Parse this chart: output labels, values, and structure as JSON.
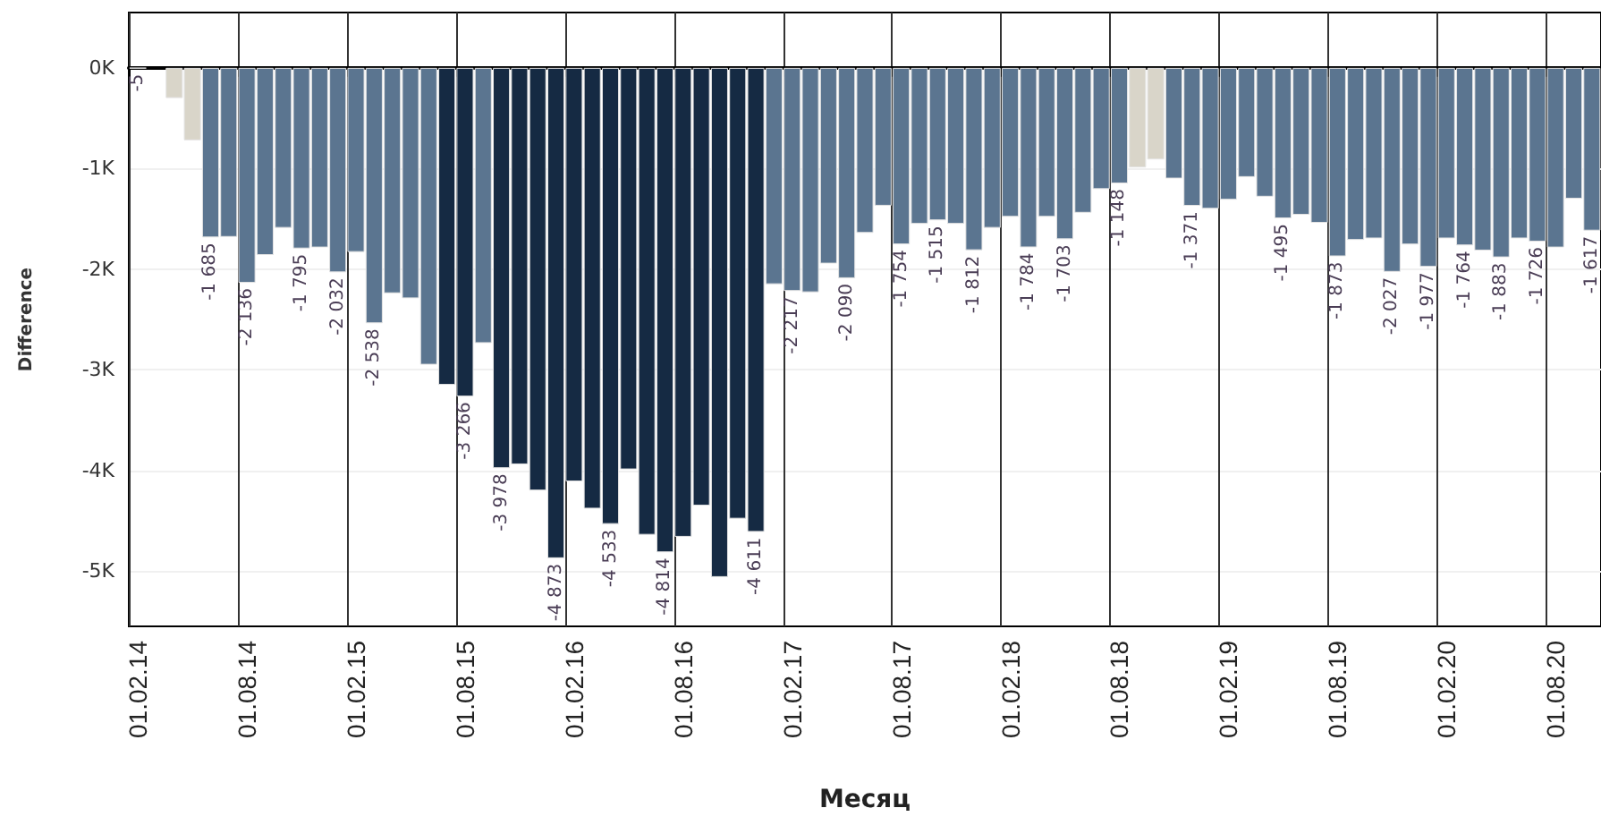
{
  "chart_data": {
    "type": "bar",
    "xlabel": "Месяц",
    "ylabel": "Difference",
    "categories": [
      "01.02.14",
      null,
      null,
      null,
      null,
      null,
      "01.08.14",
      null,
      null,
      null,
      null,
      null,
      "01.02.15",
      null,
      null,
      null,
      null,
      null,
      "01.08.15",
      null,
      null,
      null,
      null,
      null,
      "01.02.16",
      null,
      null,
      null,
      null,
      null,
      "01.08.16",
      null,
      null,
      null,
      null,
      null,
      "01.02.17",
      null,
      null,
      null,
      null,
      null,
      "01.08.17",
      null,
      null,
      null,
      null,
      null,
      "01.02.18",
      null,
      null,
      null,
      null,
      null,
      "01.08.18",
      null,
      null,
      null,
      null,
      null,
      "01.02.19",
      null,
      null,
      null,
      null,
      null,
      "01.08.19",
      null,
      null,
      null,
      null,
      null,
      "01.02.20",
      null,
      null,
      null,
      null,
      null,
      "01.08.20",
      null,
      null
    ],
    "values": [
      -5,
      null,
      -300,
      -720,
      -1685,
      -1680,
      -2136,
      -1860,
      -1590,
      -1795,
      -1785,
      -2032,
      -1830,
      -2538,
      -2240,
      -2290,
      -2950,
      -3150,
      -3266,
      -2735,
      -3978,
      -3940,
      -4200,
      -4873,
      -4110,
      -4380,
      -4533,
      -3990,
      -4640,
      -4814,
      -4660,
      -4350,
      -5060,
      -4480,
      -4611,
      -2150,
      -2217,
      -2230,
      -1945,
      -2090,
      -1640,
      -1370,
      -1754,
      -1550,
      -1515,
      -1550,
      -1812,
      -1590,
      -1480,
      -1784,
      -1480,
      -1703,
      -1440,
      -1205,
      -1148,
      -990,
      -910,
      -1100,
      -1371,
      -1400,
      -1310,
      -1085,
      -1280,
      -1495,
      -1460,
      -1540,
      -1873,
      -1710,
      -1695,
      -2027,
      -1755,
      -1977,
      -1695,
      -1764,
      -1815,
      -1883,
      -1695,
      -1726,
      -1785,
      -1300,
      -1617
    ],
    "value_labels": [
      "-5",
      null,
      null,
      null,
      "-1 685",
      null,
      "-2 136",
      null,
      null,
      "-1 795",
      null,
      "-2 032",
      null,
      "-2 538",
      null,
      null,
      null,
      null,
      "-3 266",
      null,
      "-3 978",
      null,
      null,
      "-4 873",
      null,
      null,
      "-4 533",
      null,
      null,
      "-4 814",
      null,
      null,
      null,
      null,
      "-4 611",
      null,
      "-2 217",
      null,
      null,
      "-2 090",
      null,
      null,
      "-1 754",
      null,
      "-1 515",
      null,
      "-1 812",
      null,
      null,
      "-1 784",
      null,
      "-1 703",
      null,
      null,
      "-1 148",
      null,
      null,
      null,
      "-1 371",
      null,
      null,
      null,
      null,
      "-1 495",
      null,
      null,
      "-1 873",
      null,
      null,
      "-2 027",
      null,
      "-1 977",
      null,
      "-1 764",
      null,
      "-1 883",
      null,
      "-1 726",
      null,
      null,
      "-1 617"
    ],
    "colors": [
      "#d9d5c9",
      "#d9d5c9",
      "#d9d5c9",
      "#d9d5c9",
      "#5b7590",
      "#5b7590",
      "#5b7590",
      "#5b7590",
      "#5b7590",
      "#5b7590",
      "#5b7590",
      "#5b7590",
      "#5b7590",
      "#5b7590",
      "#5b7590",
      "#5b7590",
      "#5b7590",
      "#152a43",
      "#152a43",
      "#5b7590",
      "#152a43",
      "#152a43",
      "#152a43",
      "#152a43",
      "#152a43",
      "#152a43",
      "#152a43",
      "#152a43",
      "#152a43",
      "#152a43",
      "#152a43",
      "#152a43",
      "#152a43",
      "#152a43",
      "#152a43",
      "#5b7590",
      "#5b7590",
      "#5b7590",
      "#5b7590",
      "#5b7590",
      "#5b7590",
      "#5b7590",
      "#5b7590",
      "#5b7590",
      "#5b7590",
      "#5b7590",
      "#5b7590",
      "#5b7590",
      "#5b7590",
      "#5b7590",
      "#5b7590",
      "#5b7590",
      "#5b7590",
      "#5b7590",
      "#5b7590",
      "#d9d5c9",
      "#d9d5c9",
      "#5b7590",
      "#5b7590",
      "#5b7590",
      "#5b7590",
      "#5b7590",
      "#5b7590",
      "#5b7590",
      "#5b7590",
      "#5b7590",
      "#5b7590",
      "#5b7590",
      "#5b7590",
      "#5b7590",
      "#5b7590",
      "#5b7590",
      "#5b7590",
      "#5b7590",
      "#5b7590",
      "#5b7590",
      "#5b7590",
      "#5b7590",
      "#5b7590",
      "#5b7590",
      "#5b7590"
    ],
    "ylim": [
      -5550,
      550
    ],
    "yticks": [
      {
        "value": 0,
        "label": "0K"
      },
      {
        "value": -1000,
        "label": "-1K"
      },
      {
        "value": -2000,
        "label": "-2K"
      },
      {
        "value": -3000,
        "label": "-3K"
      },
      {
        "value": -4000,
        "label": "-4K"
      },
      {
        "value": -5000,
        "label": "-5K"
      }
    ],
    "grid": true
  }
}
